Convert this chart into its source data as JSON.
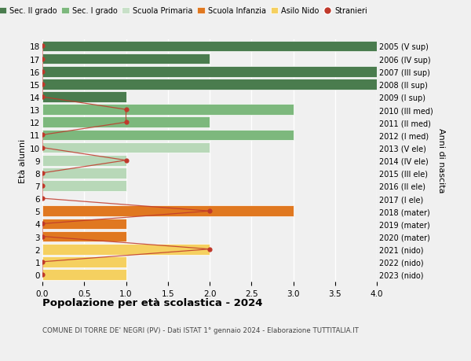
{
  "ages": [
    18,
    17,
    16,
    15,
    14,
    13,
    12,
    11,
    10,
    9,
    8,
    7,
    6,
    5,
    4,
    3,
    2,
    1,
    0
  ],
  "right_labels": [
    "2005 (V sup)",
    "2006 (IV sup)",
    "2007 (III sup)",
    "2008 (II sup)",
    "2009 (I sup)",
    "2010 (III med)",
    "2011 (II med)",
    "2012 (I med)",
    "2013 (V ele)",
    "2014 (IV ele)",
    "2015 (III ele)",
    "2016 (II ele)",
    "2017 (I ele)",
    "2018 (mater)",
    "2019 (mater)",
    "2020 (mater)",
    "2021 (nido)",
    "2022 (nido)",
    "2023 (nido)"
  ],
  "bar_values": [
    4,
    2,
    4,
    4,
    1,
    3,
    2,
    3,
    2,
    1,
    1,
    1,
    0,
    3,
    1,
    1,
    2,
    1,
    1
  ],
  "bar_colors": [
    "#4a7c4e",
    "#4a7c4e",
    "#4a7c4e",
    "#4a7c4e",
    "#4a7c4e",
    "#7db87d",
    "#7db87d",
    "#7db87d",
    "#b8d8b8",
    "#b8d8b8",
    "#b8d8b8",
    "#b8d8b8",
    "#b8d8b8",
    "#e07820",
    "#e07820",
    "#e07820",
    "#f5d060",
    "#f5d060",
    "#f5d060"
  ],
  "stranieri_x": [
    0,
    0,
    0,
    0,
    0,
    1,
    1,
    0,
    0,
    1,
    0,
    0,
    0,
    2,
    0,
    0,
    2,
    0,
    0
  ],
  "legend_labels": [
    "Sec. II grado",
    "Sec. I grado",
    "Scuola Primaria",
    "Scuola Infanzia",
    "Asilo Nido",
    "Stranieri"
  ],
  "legend_colors": [
    "#4a7c4e",
    "#7db87d",
    "#c8e0c8",
    "#e07820",
    "#f5d060",
    "#c0392b"
  ],
  "title": "Popolazione per età scolastica - 2024",
  "subtitle": "COMUNE DI TORRE DE' NEGRI (PV) - Dati ISTAT 1° gennaio 2024 - Elaborazione TUTTITALIA.IT",
  "ylabel": "Età alunni",
  "ylabel_right": "Anni di nascita",
  "xlim": [
    0,
    4.0
  ],
  "xticks": [
    0,
    0.5,
    1.0,
    1.5,
    2.0,
    2.5,
    3.0,
    3.5,
    4.0
  ],
  "stranieri_color": "#c0392b",
  "bg_color": "#f0f0f0",
  "bar_height": 0.85,
  "grid_color": "#ffffff",
  "figsize": [
    6.0,
    4.6
  ],
  "dpi": 100
}
